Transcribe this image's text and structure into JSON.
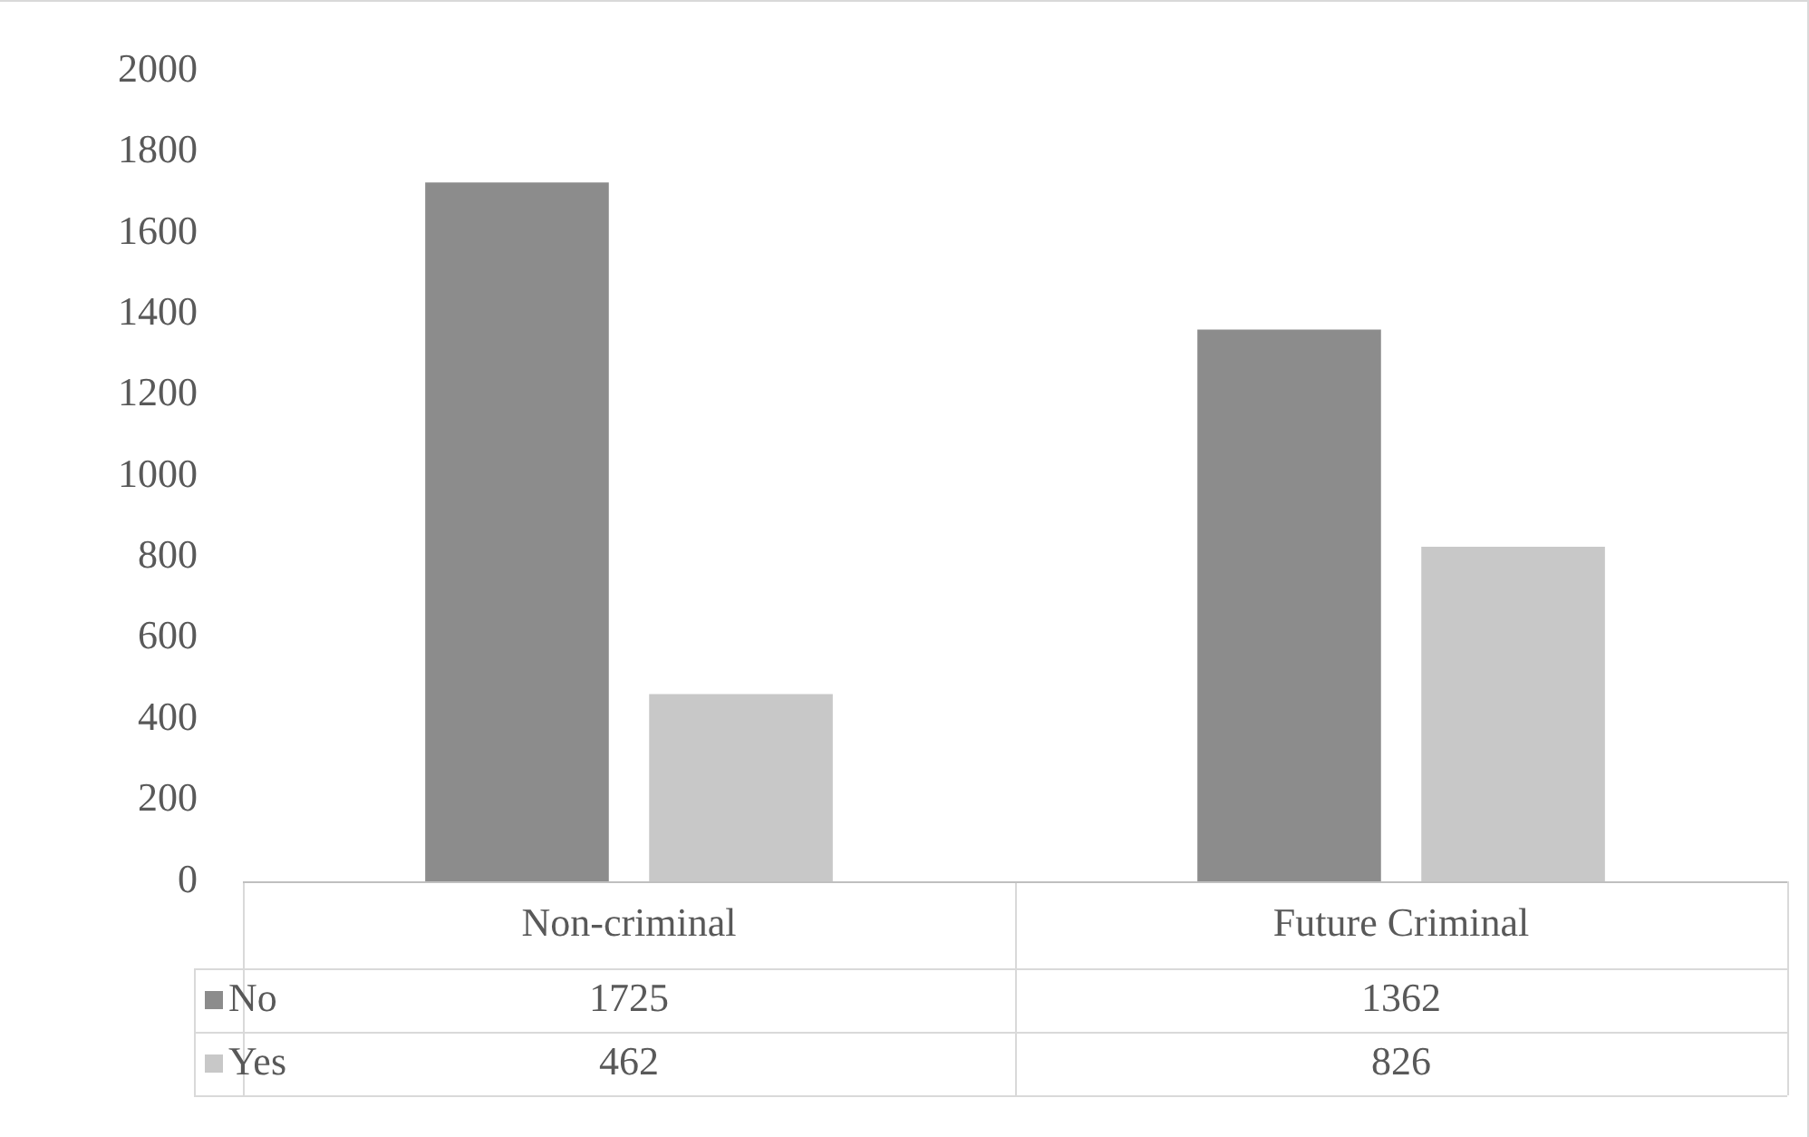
{
  "chart_data": {
    "type": "bar",
    "categories": [
      "Non-criminal",
      "Future Criminal"
    ],
    "series": [
      {
        "name": "No",
        "color": "#8c8c8c",
        "values": [
          1725,
          1362
        ]
      },
      {
        "name": "Yes",
        "color": "#c8c8c8",
        "values": [
          462,
          826
        ]
      }
    ],
    "ylim": [
      0,
      2000
    ],
    "yticks": [
      0,
      200,
      400,
      600,
      800,
      1000,
      1200,
      1400,
      1600,
      1800,
      2000
    ],
    "grid": false,
    "legend": "bottom left",
    "data_labels": true
  }
}
